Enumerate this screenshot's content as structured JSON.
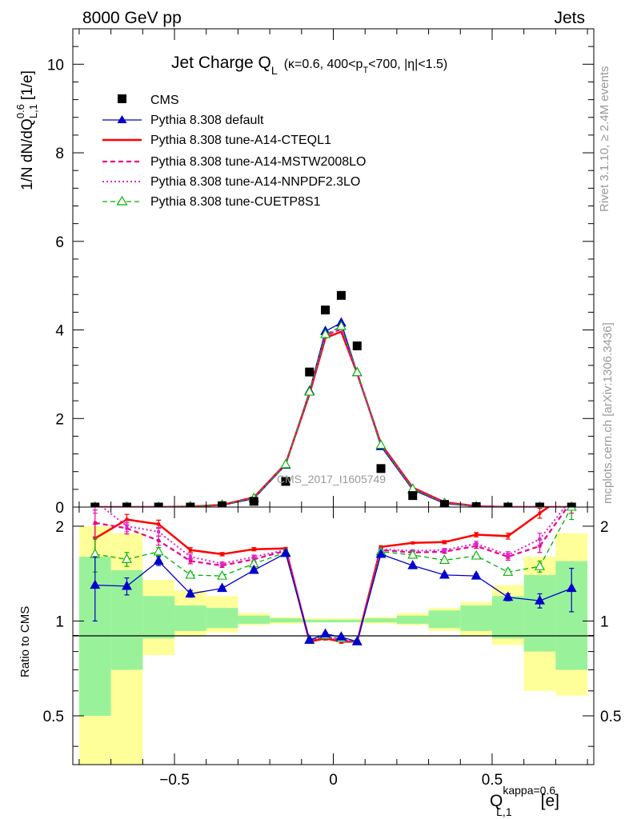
{
  "header": {
    "energy": "8000 GeV pp",
    "category": "Jets"
  },
  "side_labels": {
    "rivet": "Rivet 3.1.10, ≥ 2.4M events",
    "mcplots": "mcplots.cern.ch [arXiv:1306.3436]"
  },
  "chart_data": [
    {
      "type": "line",
      "title_main": "Jet Charge Q",
      "title_sub": "L",
      "title_cuts_pre": "(κ=0.6, 400<p",
      "title_cuts_sub": "T",
      "title_cuts_post": "<700, |η|<1.5)",
      "ylabel": "1/N dN/dQ",
      "ylabel_sup": "0.6",
      "ylabel_sub": "L,1",
      "ylabel_unit": "[1/e]",
      "watermark": "CMS_2017_I1605749",
      "ylim": [
        0,
        10.8
      ],
      "xlim": [
        -0.82,
        0.82
      ],
      "y_ticks": [
        0,
        2,
        4,
        6,
        8,
        10
      ],
      "legend_position": "top-left",
      "x": [
        -0.75,
        -0.65,
        -0.55,
        -0.45,
        -0.35,
        -0.25,
        -0.15,
        -0.075,
        -0.025,
        0.025,
        0.075,
        0.15,
        0.25,
        0.35,
        0.45,
        0.55,
        0.65,
        0.75
      ],
      "data": {
        "name": "CMS",
        "color": "#000000",
        "values": [
          0.0,
          0.0,
          0.0,
          0.0,
          0.03,
          0.13,
          0.58,
          3.05,
          4.45,
          4.78,
          3.64,
          0.87,
          0.26,
          0.06,
          0.01,
          0.0,
          0.0,
          0.0
        ]
      },
      "series": [
        {
          "name": "Pythia 8.308 default",
          "color": "#0000cc",
          "style": "solid",
          "marker": "triangle-filled",
          "values": [
            0.0,
            0.0,
            0.0,
            0.01,
            0.04,
            0.19,
            0.95,
            2.62,
            3.97,
            4.16,
            3.04,
            1.37,
            0.39,
            0.08,
            0.01,
            0.0,
            0.0,
            0.0
          ]
        },
        {
          "name": "Pythia 8.308 tune-A14-CTEQL1",
          "color": "#ff0000",
          "style": "solid",
          "marker": "none",
          "values": [
            0.0,
            0.0,
            0.0,
            0.01,
            0.05,
            0.22,
            0.98,
            2.55,
            3.82,
            3.96,
            3.02,
            1.43,
            0.44,
            0.11,
            0.02,
            0.0,
            0.0,
            0.0
          ]
        },
        {
          "name": "Pythia 8.308 tune-A14-MSTW2008LO",
          "color": "#e8008a",
          "style": "dashed",
          "marker": "none",
          "values": [
            0.0,
            0.0,
            0.0,
            0.01,
            0.05,
            0.21,
            0.97,
            2.58,
            3.87,
            4.02,
            3.03,
            1.41,
            0.42,
            0.1,
            0.02,
            0.0,
            0.0,
            0.0
          ]
        },
        {
          "name": "Pythia 8.308 tune-A14-NNPDF2.3LO",
          "color": "#e020d0",
          "style": "dotted",
          "marker": "none",
          "values": [
            0.0,
            0.0,
            0.0,
            0.01,
            0.05,
            0.21,
            0.97,
            2.59,
            3.88,
            4.03,
            3.03,
            1.41,
            0.42,
            0.1,
            0.02,
            0.0,
            0.0,
            0.0
          ]
        },
        {
          "name": "Pythia 8.308 tune-CUETP8S1",
          "color": "#00b000",
          "style": "dashed",
          "marker": "triangle-open",
          "values": [
            0.0,
            0.0,
            0.0,
            0.01,
            0.05,
            0.2,
            0.96,
            2.6,
            3.9,
            4.08,
            3.04,
            1.4,
            0.41,
            0.09,
            0.01,
            0.0,
            0.0,
            0.0
          ]
        }
      ]
    },
    {
      "type": "line",
      "ylabel": "Ratio to CMS",
      "xlabel": "Q",
      "xlabel_sup": "kappa=0.6",
      "xlabel_sub": "L,1",
      "xlabel_unit": "[e]",
      "ylim": [
        0.35,
        2.3
      ],
      "y_ticks": [
        0.5,
        1,
        2
      ],
      "y_tick_labels": [
        "0.5",
        "1",
        "2"
      ],
      "x_ticks": [
        -0.5,
        0,
        0.5
      ],
      "x_tick_labels": [
        "−0.5",
        "0",
        "0.5"
      ],
      "bins": [
        [
          -0.8,
          -0.7
        ],
        [
          -0.7,
          -0.6
        ],
        [
          -0.6,
          -0.5
        ],
        [
          -0.5,
          -0.4
        ],
        [
          -0.4,
          -0.3
        ],
        [
          -0.3,
          -0.2
        ],
        [
          -0.2,
          -0.1
        ],
        [
          -0.1,
          -0.05
        ],
        [
          -0.05,
          0.0
        ],
        [
          0.0,
          0.05
        ],
        [
          0.05,
          0.1
        ],
        [
          0.1,
          0.2
        ],
        [
          0.2,
          0.3
        ],
        [
          0.3,
          0.4
        ],
        [
          0.4,
          0.5
        ],
        [
          0.5,
          0.6
        ],
        [
          0.6,
          0.7
        ],
        [
          0.7,
          0.8
        ]
      ],
      "band_stat": {
        "color": "#99f299",
        "low": [
          0.5,
          0.7,
          0.88,
          0.93,
          0.95,
          0.98,
          0.99,
          0.99,
          0.99,
          0.99,
          0.99,
          0.99,
          0.98,
          0.95,
          0.93,
          0.88,
          0.8,
          0.7
        ],
        "high": [
          1.6,
          1.45,
          1.2,
          1.12,
          1.1,
          1.04,
          1.02,
          1.01,
          1.01,
          1.01,
          1.01,
          1.02,
          1.04,
          1.08,
          1.12,
          1.2,
          1.4,
          1.55
        ]
      },
      "band_total": {
        "color": "#ffff99",
        "low": [
          0.3,
          0.3,
          0.78,
          0.9,
          0.92,
          0.97,
          0.98,
          0.99,
          0.99,
          0.99,
          0.99,
          0.98,
          0.97,
          0.93,
          0.9,
          0.84,
          0.6,
          0.58
        ],
        "high": [
          2.0,
          1.9,
          1.35,
          1.25,
          1.2,
          1.06,
          1.03,
          1.02,
          1.02,
          1.02,
          1.02,
          1.03,
          1.06,
          1.1,
          1.15,
          1.3,
          1.6,
          1.9
        ]
      },
      "series": [
        {
          "name": "Pythia 8.308 default",
          "color": "#0000cc",
          "style": "solid",
          "marker": "triangle-filled",
          "values": [
            1.3,
            1.29,
            1.55,
            1.22,
            1.27,
            1.45,
            1.64,
            0.87,
            0.91,
            0.89,
            0.86,
            1.63,
            1.5,
            1.4,
            1.39,
            1.19,
            1.16,
            1.27
          ],
          "err": [
            0.3,
            0.08,
            0.05,
            0.03,
            0.02,
            0.02,
            0.01,
            0.01,
            0.01,
            0.01,
            0.01,
            0.01,
            0.01,
            0.02,
            0.02,
            0.03,
            0.06,
            0.2
          ]
        },
        {
          "name": "Pythia 8.308 tune-A14-CTEQL1",
          "color": "#ff0000",
          "style": "solid",
          "marker": "none",
          "values": [
            1.83,
            2.1,
            2.03,
            1.68,
            1.63,
            1.69,
            1.7,
            0.86,
            0.88,
            0.86,
            0.86,
            1.72,
            1.77,
            1.78,
            1.88,
            1.86,
            2.2,
            2.6
          ],
          "err": [
            0.2,
            0.08,
            0.06,
            0.03,
            0.02,
            0.02,
            0.01,
            0.01,
            0.01,
            0.01,
            0.01,
            0.01,
            0.01,
            0.02,
            0.03,
            0.04,
            0.08,
            0.2
          ]
        },
        {
          "name": "Pythia 8.308 tune-A14-MSTW2008LO",
          "color": "#e8008a",
          "style": "dashed",
          "marker": "none",
          "values": [
            2.05,
            1.97,
            1.8,
            1.55,
            1.5,
            1.57,
            1.67,
            0.87,
            0.89,
            0.87,
            0.86,
            1.68,
            1.65,
            1.66,
            1.73,
            1.6,
            1.73,
            2.4
          ],
          "err": [
            0.2,
            0.08,
            0.06,
            0.03,
            0.02,
            0.02,
            0.01,
            0.01,
            0.01,
            0.01,
            0.01,
            0.01,
            0.01,
            0.02,
            0.03,
            0.04,
            0.08,
            0.2
          ]
        },
        {
          "name": "Pythia 8.308 tune-A14-NNPDF2.3LO",
          "color": "#e020d0",
          "style": "dotted",
          "marker": "none",
          "values": [
            2.4,
            2.0,
            1.92,
            1.6,
            1.52,
            1.6,
            1.68,
            0.87,
            0.89,
            0.87,
            0.86,
            1.69,
            1.67,
            1.68,
            1.76,
            1.62,
            1.82,
            2.45
          ],
          "err": [
            0.2,
            0.08,
            0.06,
            0.03,
            0.02,
            0.02,
            0.01,
            0.01,
            0.01,
            0.01,
            0.01,
            0.01,
            0.01,
            0.02,
            0.03,
            0.04,
            0.08,
            0.2
          ]
        },
        {
          "name": "Pythia 8.308 tune-CUETP8S1",
          "color": "#00b000",
          "style": "dashed",
          "marker": "triangle-open",
          "values": [
            1.63,
            1.57,
            1.66,
            1.4,
            1.39,
            1.52,
            1.65,
            0.87,
            0.9,
            0.88,
            0.86,
            1.66,
            1.62,
            1.56,
            1.61,
            1.43,
            1.49,
            2.3
          ],
          "err": [
            0.2,
            0.08,
            0.05,
            0.03,
            0.02,
            0.02,
            0.01,
            0.01,
            0.01,
            0.01,
            0.01,
            0.01,
            0.01,
            0.02,
            0.02,
            0.03,
            0.06,
            0.2
          ]
        }
      ]
    }
  ]
}
